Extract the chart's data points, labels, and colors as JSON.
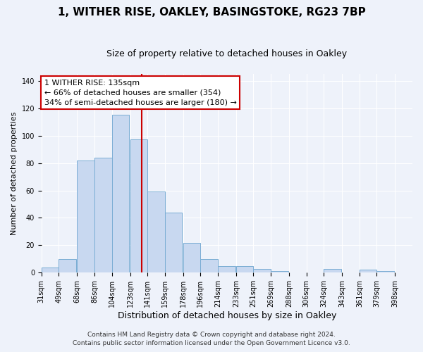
{
  "title": "1, WITHER RISE, OAKLEY, BASINGSTOKE, RG23 7BP",
  "subtitle": "Size of property relative to detached houses in Oakley",
  "xlabel": "Distribution of detached houses by size in Oakley",
  "ylabel": "Number of detached properties",
  "bar_left_edges": [
    31,
    49,
    68,
    86,
    104,
    123,
    141,
    159,
    178,
    196,
    214,
    233,
    251,
    269,
    288,
    306,
    324,
    343,
    361,
    379
  ],
  "bar_heights": [
    4,
    10,
    82,
    84,
    115,
    97,
    59,
    44,
    22,
    10,
    5,
    5,
    3,
    1,
    0,
    0,
    3,
    0,
    2,
    1
  ],
  "bin_width": 18,
  "tick_labels": [
    "31sqm",
    "49sqm",
    "68sqm",
    "86sqm",
    "104sqm",
    "123sqm",
    "141sqm",
    "159sqm",
    "178sqm",
    "196sqm",
    "214sqm",
    "233sqm",
    "251sqm",
    "269sqm",
    "288sqm",
    "306sqm",
    "324sqm",
    "343sqm",
    "361sqm",
    "379sqm",
    "398sqm"
  ],
  "tick_positions": [
    31,
    49,
    68,
    86,
    104,
    123,
    141,
    159,
    178,
    196,
    214,
    233,
    251,
    269,
    288,
    306,
    324,
    343,
    361,
    379,
    398
  ],
  "bar_color": "#c8d8f0",
  "bar_edge_color": "#7aadd4",
  "vline_x": 135,
  "vline_color": "#cc0000",
  "ylim": [
    0,
    145
  ],
  "yticks": [
    0,
    20,
    40,
    60,
    80,
    100,
    120,
    140
  ],
  "annotation_title": "1 WITHER RISE: 135sqm",
  "annotation_line1": "← 66% of detached houses are smaller (354)",
  "annotation_line2": "34% of semi-detached houses are larger (180) →",
  "annotation_box_color": "#ffffff",
  "annotation_box_edge_color": "#cc0000",
  "footer1": "Contains HM Land Registry data © Crown copyright and database right 2024.",
  "footer2": "Contains public sector information licensed under the Open Government Licence v3.0.",
  "background_color": "#eef2fa",
  "grid_color": "#ffffff",
  "title_fontsize": 11,
  "subtitle_fontsize": 9,
  "xlabel_fontsize": 9,
  "ylabel_fontsize": 8,
  "tick_fontsize": 7,
  "annotation_fontsize": 8,
  "footer_fontsize": 6.5
}
